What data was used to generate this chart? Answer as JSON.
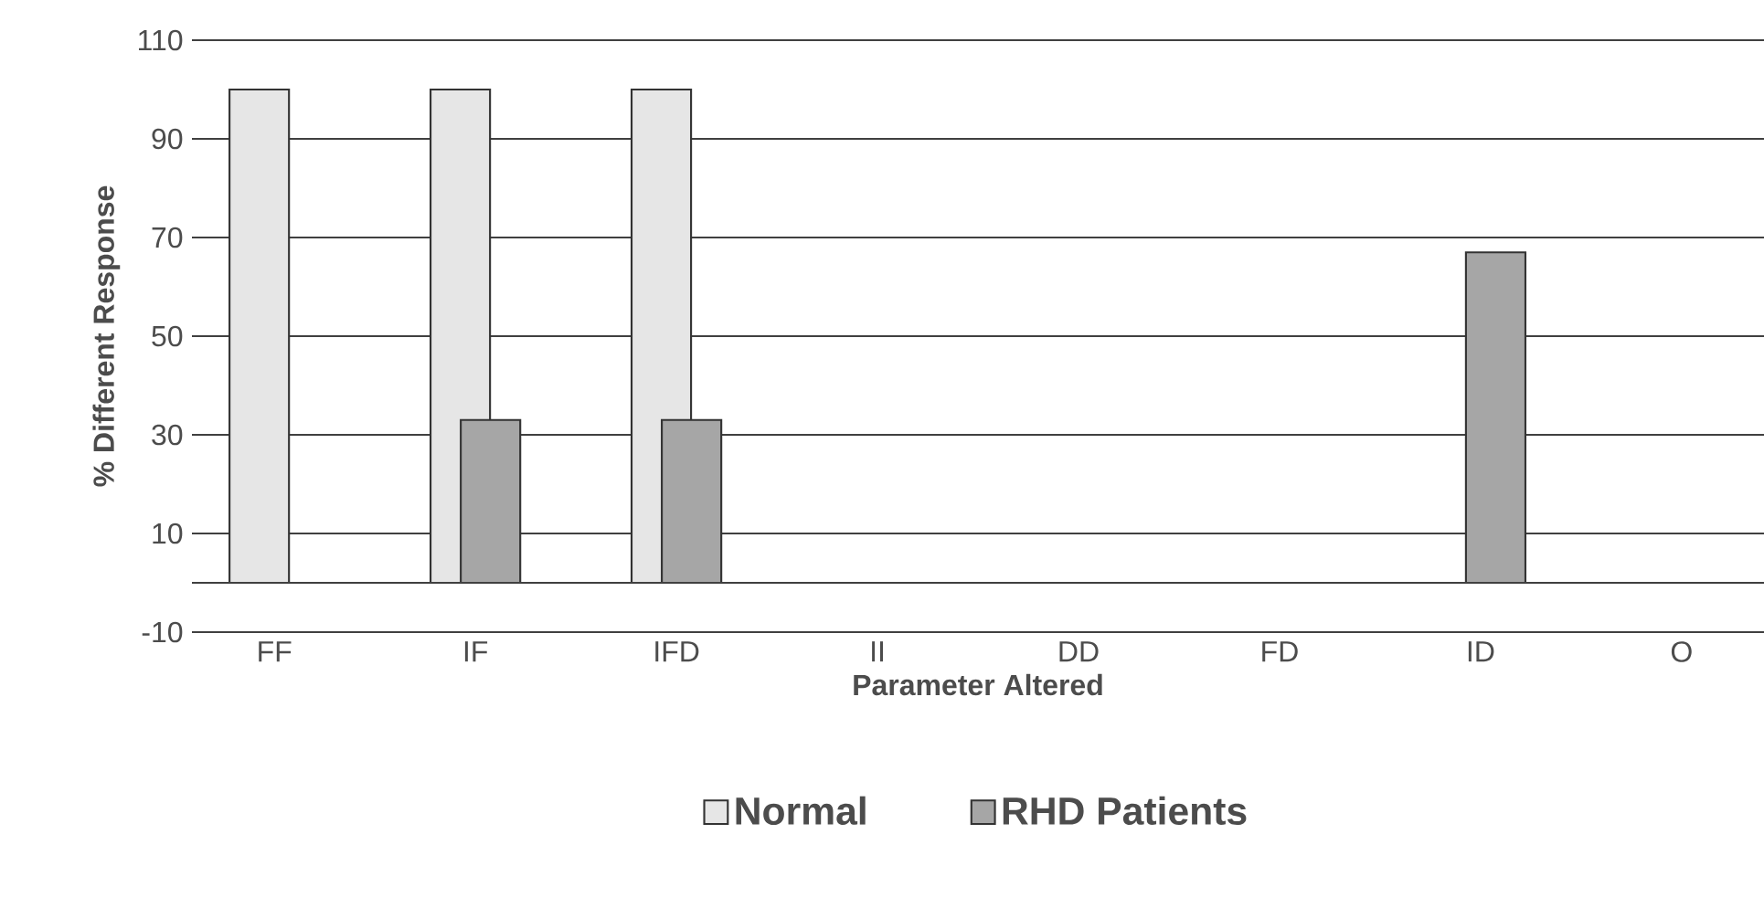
{
  "chart_data": {
    "type": "bar",
    "xlabel": "Parameter Altered",
    "ylabel": "% Different Response",
    "categories": [
      "FF",
      "IF",
      "IFD",
      "II",
      "DD",
      "FD",
      "ID",
      "O"
    ],
    "series": [
      {
        "name": "Normal",
        "color": "#e6e6e6",
        "values": [
          100,
          100,
          100,
          0,
          0,
          0,
          0,
          0
        ]
      },
      {
        "name": "RHD  Patients",
        "color": "#a6a6a6",
        "values": [
          0,
          33,
          33,
          0,
          0,
          0,
          67,
          0
        ]
      }
    ],
    "ylim": [
      -10,
      110
    ],
    "yticks": [
      -10,
      10,
      30,
      50,
      70,
      90,
      110
    ],
    "grid": "y",
    "legend": "bottom"
  }
}
